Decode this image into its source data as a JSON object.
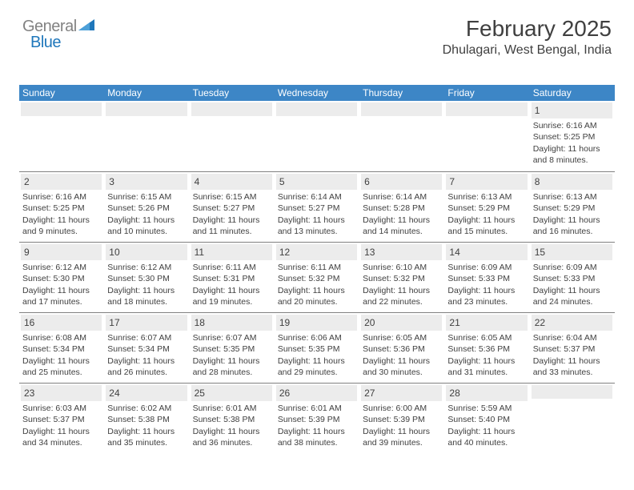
{
  "logo": {
    "general": "General",
    "blue": "Blue"
  },
  "header": {
    "month_title": "February 2025",
    "location": "Dhulagari, West Bengal, India"
  },
  "colors": {
    "header_blue": "#3d86c6",
    "logo_blue": "#1f77bb",
    "logo_gray": "#828282",
    "daynum_bg": "#ececec",
    "text": "#404040",
    "divider": "#808080"
  },
  "days_of_week": [
    "Sunday",
    "Monday",
    "Tuesday",
    "Wednesday",
    "Thursday",
    "Friday",
    "Saturday"
  ],
  "weeks": [
    [
      {
        "n": "",
        "sr": "",
        "ss": "",
        "dl": ""
      },
      {
        "n": "",
        "sr": "",
        "ss": "",
        "dl": ""
      },
      {
        "n": "",
        "sr": "",
        "ss": "",
        "dl": ""
      },
      {
        "n": "",
        "sr": "",
        "ss": "",
        "dl": ""
      },
      {
        "n": "",
        "sr": "",
        "ss": "",
        "dl": ""
      },
      {
        "n": "",
        "sr": "",
        "ss": "",
        "dl": ""
      },
      {
        "n": "1",
        "sr": "Sunrise: 6:16 AM",
        "ss": "Sunset: 5:25 PM",
        "dl": "Daylight: 11 hours and 8 minutes."
      }
    ],
    [
      {
        "n": "2",
        "sr": "Sunrise: 6:16 AM",
        "ss": "Sunset: 5:25 PM",
        "dl": "Daylight: 11 hours and 9 minutes."
      },
      {
        "n": "3",
        "sr": "Sunrise: 6:15 AM",
        "ss": "Sunset: 5:26 PM",
        "dl": "Daylight: 11 hours and 10 minutes."
      },
      {
        "n": "4",
        "sr": "Sunrise: 6:15 AM",
        "ss": "Sunset: 5:27 PM",
        "dl": "Daylight: 11 hours and 11 minutes."
      },
      {
        "n": "5",
        "sr": "Sunrise: 6:14 AM",
        "ss": "Sunset: 5:27 PM",
        "dl": "Daylight: 11 hours and 13 minutes."
      },
      {
        "n": "6",
        "sr": "Sunrise: 6:14 AM",
        "ss": "Sunset: 5:28 PM",
        "dl": "Daylight: 11 hours and 14 minutes."
      },
      {
        "n": "7",
        "sr": "Sunrise: 6:13 AM",
        "ss": "Sunset: 5:29 PM",
        "dl": "Daylight: 11 hours and 15 minutes."
      },
      {
        "n": "8",
        "sr": "Sunrise: 6:13 AM",
        "ss": "Sunset: 5:29 PM",
        "dl": "Daylight: 11 hours and 16 minutes."
      }
    ],
    [
      {
        "n": "9",
        "sr": "Sunrise: 6:12 AM",
        "ss": "Sunset: 5:30 PM",
        "dl": "Daylight: 11 hours and 17 minutes."
      },
      {
        "n": "10",
        "sr": "Sunrise: 6:12 AM",
        "ss": "Sunset: 5:30 PM",
        "dl": "Daylight: 11 hours and 18 minutes."
      },
      {
        "n": "11",
        "sr": "Sunrise: 6:11 AM",
        "ss": "Sunset: 5:31 PM",
        "dl": "Daylight: 11 hours and 19 minutes."
      },
      {
        "n": "12",
        "sr": "Sunrise: 6:11 AM",
        "ss": "Sunset: 5:32 PM",
        "dl": "Daylight: 11 hours and 20 minutes."
      },
      {
        "n": "13",
        "sr": "Sunrise: 6:10 AM",
        "ss": "Sunset: 5:32 PM",
        "dl": "Daylight: 11 hours and 22 minutes."
      },
      {
        "n": "14",
        "sr": "Sunrise: 6:09 AM",
        "ss": "Sunset: 5:33 PM",
        "dl": "Daylight: 11 hours and 23 minutes."
      },
      {
        "n": "15",
        "sr": "Sunrise: 6:09 AM",
        "ss": "Sunset: 5:33 PM",
        "dl": "Daylight: 11 hours and 24 minutes."
      }
    ],
    [
      {
        "n": "16",
        "sr": "Sunrise: 6:08 AM",
        "ss": "Sunset: 5:34 PM",
        "dl": "Daylight: 11 hours and 25 minutes."
      },
      {
        "n": "17",
        "sr": "Sunrise: 6:07 AM",
        "ss": "Sunset: 5:34 PM",
        "dl": "Daylight: 11 hours and 26 minutes."
      },
      {
        "n": "18",
        "sr": "Sunrise: 6:07 AM",
        "ss": "Sunset: 5:35 PM",
        "dl": "Daylight: 11 hours and 28 minutes."
      },
      {
        "n": "19",
        "sr": "Sunrise: 6:06 AM",
        "ss": "Sunset: 5:35 PM",
        "dl": "Daylight: 11 hours and 29 minutes."
      },
      {
        "n": "20",
        "sr": "Sunrise: 6:05 AM",
        "ss": "Sunset: 5:36 PM",
        "dl": "Daylight: 11 hours and 30 minutes."
      },
      {
        "n": "21",
        "sr": "Sunrise: 6:05 AM",
        "ss": "Sunset: 5:36 PM",
        "dl": "Daylight: 11 hours and 31 minutes."
      },
      {
        "n": "22",
        "sr": "Sunrise: 6:04 AM",
        "ss": "Sunset: 5:37 PM",
        "dl": "Daylight: 11 hours and 33 minutes."
      }
    ],
    [
      {
        "n": "23",
        "sr": "Sunrise: 6:03 AM",
        "ss": "Sunset: 5:37 PM",
        "dl": "Daylight: 11 hours and 34 minutes."
      },
      {
        "n": "24",
        "sr": "Sunrise: 6:02 AM",
        "ss": "Sunset: 5:38 PM",
        "dl": "Daylight: 11 hours and 35 minutes."
      },
      {
        "n": "25",
        "sr": "Sunrise: 6:01 AM",
        "ss": "Sunset: 5:38 PM",
        "dl": "Daylight: 11 hours and 36 minutes."
      },
      {
        "n": "26",
        "sr": "Sunrise: 6:01 AM",
        "ss": "Sunset: 5:39 PM",
        "dl": "Daylight: 11 hours and 38 minutes."
      },
      {
        "n": "27",
        "sr": "Sunrise: 6:00 AM",
        "ss": "Sunset: 5:39 PM",
        "dl": "Daylight: 11 hours and 39 minutes."
      },
      {
        "n": "28",
        "sr": "Sunrise: 5:59 AM",
        "ss": "Sunset: 5:40 PM",
        "dl": "Daylight: 11 hours and 40 minutes."
      },
      {
        "n": "",
        "sr": "",
        "ss": "",
        "dl": ""
      }
    ]
  ]
}
